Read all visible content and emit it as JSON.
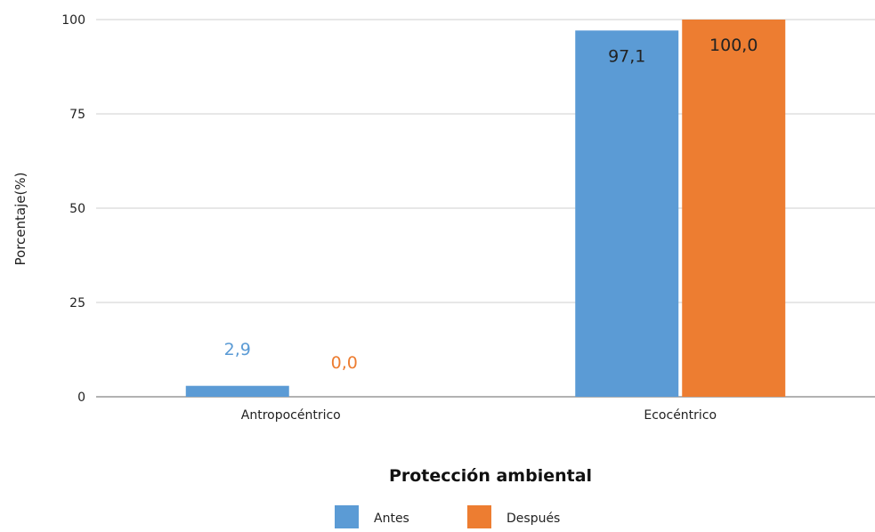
{
  "chart_data": {
    "type": "bar",
    "title": "",
    "xlabel": "Protección ambiental",
    "ylabel": "Porcentaje(%)",
    "categories": [
      "Antropocéntrico",
      "Ecocéntrico"
    ],
    "series": [
      {
        "name": "Antes",
        "values": [
          2.9,
          97.1
        ],
        "labels": [
          "2,9",
          "97,1"
        ],
        "color": "#5b9bd5"
      },
      {
        "name": "Después",
        "values": [
          0.0,
          100.0
        ],
        "labels": [
          "0,0",
          "100,0"
        ],
        "color": "#ed7d31"
      }
    ],
    "ylim": [
      0,
      100
    ],
    "yticks": [
      "0",
      "25",
      "50",
      "75",
      "100"
    ],
    "grid": true,
    "legend_position": "bottom"
  }
}
